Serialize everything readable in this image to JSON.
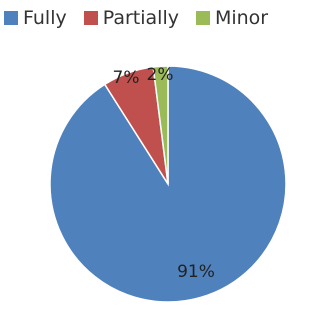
{
  "chart_data": {
    "type": "pie",
    "categories": [
      "Fully",
      "Partially",
      "Minor"
    ],
    "values": [
      91,
      7,
      2
    ],
    "data_labels": [
      "91%",
      "7%",
      "2%"
    ],
    "colors": [
      "#4F81BD",
      "#C0504D",
      "#9BBB59"
    ],
    "legend": "top",
    "title": ""
  }
}
